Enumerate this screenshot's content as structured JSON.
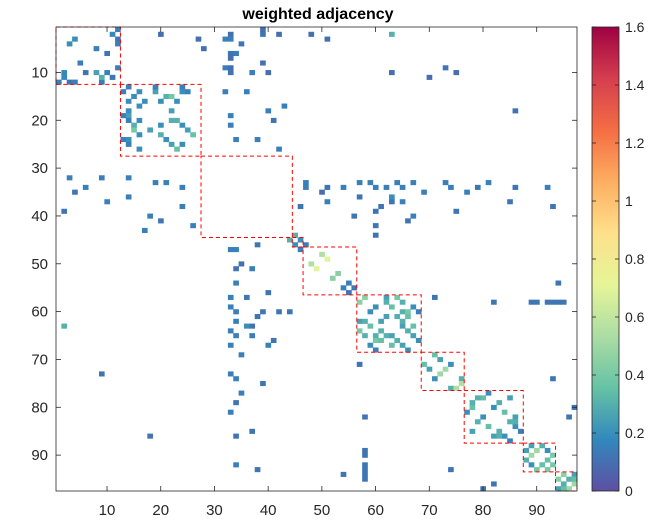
{
  "chart_data": {
    "type": "heatmap",
    "title": "weighted adjacency",
    "xlabel": "",
    "ylabel": "",
    "n": 97,
    "xlim": [
      0.5,
      97.5
    ],
    "ylim": [
      0.5,
      97.5
    ],
    "x_ticks": [
      10,
      20,
      30,
      40,
      50,
      60,
      70,
      80,
      90
    ],
    "y_ticks": [
      10,
      20,
      30,
      40,
      50,
      60,
      70,
      80,
      90
    ],
    "x_tick_labels": [
      "10",
      "20",
      "30",
      "40",
      "50",
      "60",
      "70",
      "80",
      "90"
    ],
    "y_tick_labels": [
      "10",
      "20",
      "30",
      "40",
      "50",
      "60",
      "70",
      "80",
      "90"
    ],
    "colorbar": {
      "min": 0,
      "max": 1.6,
      "ticks": [
        0,
        0.2,
        0.4,
        0.6,
        0.8,
        1,
        1.2,
        1.4,
        1.6
      ],
      "tick_labels": [
        "0",
        "0.2",
        "0.4",
        "0.6",
        "0.8",
        "1",
        "1.2",
        "1.4",
        "1.6"
      ],
      "colormap": [
        "#5e4fa2",
        "#3288bd",
        "#66c2a5",
        "#abdda4",
        "#e6f598",
        "#fee08b",
        "#fdae61",
        "#f46d43",
        "#d53e4f",
        "#9e0142"
      ]
    },
    "communities": [
      {
        "start": 1,
        "end": 12
      },
      {
        "start": 13,
        "end": 27
      },
      {
        "start": 28,
        "end": 44
      },
      {
        "start": 45,
        "end": 46
      },
      {
        "start": 47,
        "end": 56
      },
      {
        "start": 57,
        "end": 68
      },
      {
        "start": 69,
        "end": 76
      },
      {
        "start": 77,
        "end": 87
      },
      {
        "start": 88,
        "end": 93
      },
      {
        "start": 94,
        "end": 97
      }
    ],
    "community_box_color": "#ff0000",
    "cells": [
      [
        1,
        12,
        0.15
      ],
      [
        2,
        11,
        0.18
      ],
      [
        3,
        4,
        0.2
      ],
      [
        3,
        12,
        0.12
      ],
      [
        4,
        3,
        0.2
      ],
      [
        4,
        12,
        0.15
      ],
      [
        5,
        8,
        0.15
      ],
      [
        6,
        10,
        0.12
      ],
      [
        8,
        5,
        0.15
      ],
      [
        9,
        12,
        0.15
      ],
      [
        10,
        2,
        0.18
      ],
      [
        10,
        6,
        0.12
      ],
      [
        11,
        2,
        0.18
      ],
      [
        12,
        1,
        0.15
      ],
      [
        12,
        3,
        0.12
      ],
      [
        12,
        4,
        0.15
      ],
      [
        12,
        9,
        0.15
      ],
      [
        10,
        8,
        0.25
      ],
      [
        11,
        9,
        0.3
      ],
      [
        10,
        10,
        0.15
      ],
      [
        11,
        11,
        0.12
      ],
      [
        2,
        20,
        0.1
      ],
      [
        2,
        33,
        0.1
      ],
      [
        1,
        39,
        0.1
      ],
      [
        3,
        33,
        0.15
      ],
      [
        2,
        42,
        0.1
      ],
      [
        3,
        51,
        0.1
      ],
      [
        6,
        33,
        0.12
      ],
      [
        7,
        33,
        0.1
      ],
      [
        9,
        33,
        0.1
      ],
      [
        8,
        39,
        0.1
      ],
      [
        10,
        33,
        0.12
      ],
      [
        10,
        40,
        0.1
      ],
      [
        3,
        27,
        0.1
      ],
      [
        5,
        28,
        0.1
      ],
      [
        2,
        48,
        0.1
      ],
      [
        10,
        63,
        0.1
      ],
      [
        11,
        70,
        0.1
      ],
      [
        10,
        75,
        0.1
      ],
      [
        13,
        14,
        0.15
      ],
      [
        14,
        13,
        0.15
      ],
      [
        14,
        16,
        0.2
      ],
      [
        16,
        14,
        0.2
      ],
      [
        14,
        19,
        0.25
      ],
      [
        19,
        14,
        0.25
      ],
      [
        15,
        21,
        0.3
      ],
      [
        21,
        15,
        0.3
      ],
      [
        15,
        22,
        0.4
      ],
      [
        22,
        15,
        0.4
      ],
      [
        14,
        24,
        0.2
      ],
      [
        24,
        14,
        0.2
      ],
      [
        14,
        25,
        0.15
      ],
      [
        25,
        14,
        0.15
      ],
      [
        16,
        20,
        0.2
      ],
      [
        20,
        16,
        0.2
      ],
      [
        18,
        22,
        0.25
      ],
      [
        22,
        18,
        0.25
      ],
      [
        20,
        23,
        0.3
      ],
      [
        23,
        20,
        0.3
      ],
      [
        21,
        24,
        0.2
      ],
      [
        24,
        21,
        0.2
      ],
      [
        22,
        25,
        0.25
      ],
      [
        25,
        22,
        0.25
      ],
      [
        23,
        26,
        0.35
      ],
      [
        26,
        23,
        0.35
      ],
      [
        16,
        17,
        0.2
      ],
      [
        17,
        16,
        0.2
      ],
      [
        19,
        13,
        0.15
      ],
      [
        13,
        19,
        0.15
      ],
      [
        24,
        13,
        0.15
      ],
      [
        13,
        24,
        0.15
      ],
      [
        25,
        24,
        0.2
      ],
      [
        26,
        16,
        0.2
      ],
      [
        18,
        14,
        0.2
      ],
      [
        20,
        22,
        0.3
      ],
      [
        21,
        20,
        0.2
      ],
      [
        20,
        14,
        0.15
      ],
      [
        15,
        15,
        0.2
      ],
      [
        16,
        23,
        0.2
      ],
      [
        23,
        16,
        0.2
      ],
      [
        32,
        3,
        0.15
      ],
      [
        32,
        9,
        0.15
      ],
      [
        32,
        14,
        0.15
      ],
      [
        33,
        21,
        0.15
      ],
      [
        33,
        19,
        0.15
      ],
      [
        34,
        24,
        0.15
      ],
      [
        35,
        4,
        0.12
      ],
      [
        36,
        14,
        0.15
      ],
      [
        34,
        6,
        0.15
      ],
      [
        37,
        10,
        0.15
      ],
      [
        38,
        24,
        0.15
      ],
      [
        39,
        2,
        0.12
      ],
      [
        40,
        18,
        0.15
      ],
      [
        42,
        26,
        0.15
      ],
      [
        43,
        17,
        0.15
      ],
      [
        41,
        20,
        0.12
      ],
      [
        3,
        32,
        0.15
      ],
      [
        9,
        32,
        0.15
      ],
      [
        14,
        32,
        0.15
      ],
      [
        21,
        33,
        0.15
      ],
      [
        19,
        33,
        0.15
      ],
      [
        24,
        34,
        0.15
      ],
      [
        4,
        35,
        0.12
      ],
      [
        14,
        36,
        0.15
      ],
      [
        6,
        34,
        0.15
      ],
      [
        10,
        37,
        0.15
      ],
      [
        24,
        38,
        0.15
      ],
      [
        2,
        39,
        0.12
      ],
      [
        18,
        40,
        0.15
      ],
      [
        26,
        42,
        0.15
      ],
      [
        17,
        43,
        0.15
      ],
      [
        20,
        41,
        0.12
      ],
      [
        33,
        47,
        0.15
      ],
      [
        34,
        47,
        0.15
      ],
      [
        35,
        50,
        0.1
      ],
      [
        37,
        51,
        0.15
      ],
      [
        34,
        51,
        0.12
      ],
      [
        34,
        54,
        0.15
      ],
      [
        33,
        57,
        0.15
      ],
      [
        33,
        59,
        0.15
      ],
      [
        34,
        60,
        0.15
      ],
      [
        34,
        62,
        0.15
      ],
      [
        33,
        64,
        0.15
      ],
      [
        34,
        65,
        0.15
      ],
      [
        33,
        67,
        0.15
      ],
      [
        35,
        69,
        0.15
      ],
      [
        33,
        73,
        0.15
      ],
      [
        34,
        74,
        0.15
      ],
      [
        35,
        77,
        0.15
      ],
      [
        34,
        79,
        0.12
      ],
      [
        33,
        81,
        0.15
      ],
      [
        34,
        86,
        0.12
      ],
      [
        34,
        92,
        0.15
      ],
      [
        47,
        33,
        0.15
      ],
      [
        47,
        34,
        0.15
      ],
      [
        50,
        35,
        0.1
      ],
      [
        51,
        37,
        0.15
      ],
      [
        51,
        34,
        0.12
      ],
      [
        54,
        34,
        0.15
      ],
      [
        57,
        33,
        0.15
      ],
      [
        59,
        33,
        0.15
      ],
      [
        60,
        34,
        0.15
      ],
      [
        62,
        34,
        0.15
      ],
      [
        64,
        33,
        0.15
      ],
      [
        65,
        34,
        0.15
      ],
      [
        67,
        33,
        0.15
      ],
      [
        69,
        35,
        0.15
      ],
      [
        73,
        33,
        0.15
      ],
      [
        74,
        34,
        0.15
      ],
      [
        77,
        35,
        0.15
      ],
      [
        79,
        34,
        0.12
      ],
      [
        81,
        33,
        0.15
      ],
      [
        86,
        34,
        0.12
      ],
      [
        92,
        34,
        0.15
      ],
      [
        36,
        57,
        0.12
      ],
      [
        38,
        61,
        0.12
      ],
      [
        37,
        63,
        0.12
      ],
      [
        40,
        67,
        0.15
      ],
      [
        40,
        56,
        0.12
      ],
      [
        39,
        60,
        0.12
      ],
      [
        37,
        65,
        0.15
      ],
      [
        41,
        66,
        0.12
      ],
      [
        42,
        60,
        0.12
      ],
      [
        44,
        60,
        0.12
      ],
      [
        39,
        75,
        0.12
      ],
      [
        37,
        85,
        0.12
      ],
      [
        38,
        93,
        0.12
      ],
      [
        36,
        63,
        0.2
      ],
      [
        57,
        36,
        0.12
      ],
      [
        61,
        38,
        0.12
      ],
      [
        63,
        37,
        0.12
      ],
      [
        67,
        40,
        0.15
      ],
      [
        56,
        40,
        0.12
      ],
      [
        60,
        39,
        0.12
      ],
      [
        65,
        37,
        0.15
      ],
      [
        66,
        41,
        0.12
      ],
      [
        60,
        42,
        0.12
      ],
      [
        60,
        44,
        0.12
      ],
      [
        75,
        39,
        0.12
      ],
      [
        85,
        37,
        0.12
      ],
      [
        93,
        38,
        0.12
      ],
      [
        63,
        36,
        0.2
      ],
      [
        44,
        45,
        0.3
      ],
      [
        45,
        44,
        0.3
      ],
      [
        45,
        46,
        0.2
      ],
      [
        46,
        45,
        0.2
      ],
      [
        46,
        47,
        0.15
      ],
      [
        47,
        46,
        0.15
      ],
      [
        46,
        38,
        0.12
      ],
      [
        38,
        46,
        0.12
      ],
      [
        48,
        50,
        0.55
      ],
      [
        49,
        51,
        0.7
      ],
      [
        50,
        48,
        0.55
      ],
      [
        51,
        49,
        0.7
      ],
      [
        52,
        53,
        0.45
      ],
      [
        53,
        52,
        0.45
      ],
      [
        54,
        55,
        0.15
      ],
      [
        55,
        54,
        0.15
      ],
      [
        55,
        56,
        0.12
      ],
      [
        56,
        55,
        0.12
      ],
      [
        57,
        62,
        0.25
      ],
      [
        58,
        62,
        0.3
      ],
      [
        57,
        64,
        0.4
      ],
      [
        59,
        60,
        0.2
      ],
      [
        60,
        59,
        0.2
      ],
      [
        60,
        65,
        0.3
      ],
      [
        61,
        66,
        0.35
      ],
      [
        63,
        59,
        0.35
      ],
      [
        64,
        61,
        0.3
      ],
      [
        65,
        63,
        0.25
      ],
      [
        66,
        60,
        0.4
      ],
      [
        66,
        64,
        0.3
      ],
      [
        67,
        63,
        0.35
      ],
      [
        68,
        66,
        0.2
      ],
      [
        59,
        67,
        0.2
      ],
      [
        58,
        65,
        0.3
      ],
      [
        62,
        57,
        0.25
      ],
      [
        62,
        58,
        0.3
      ],
      [
        64,
        57,
        0.4
      ],
      [
        65,
        60,
        0.3
      ],
      [
        66,
        61,
        0.35
      ],
      [
        59,
        63,
        0.35
      ],
      [
        61,
        64,
        0.3
      ],
      [
        63,
        65,
        0.25
      ],
      [
        60,
        66,
        0.4
      ],
      [
        64,
        66,
        0.3
      ],
      [
        63,
        67,
        0.35
      ],
      [
        66,
        68,
        0.2
      ],
      [
        67,
        59,
        0.2
      ],
      [
        65,
        58,
        0.3
      ],
      [
        57,
        58,
        0.45
      ],
      [
        58,
        57,
        0.45
      ],
      [
        61,
        62,
        0.25
      ],
      [
        62,
        61,
        0.25
      ],
      [
        68,
        60,
        0.15
      ],
      [
        60,
        68,
        0.15
      ],
      [
        62,
        65,
        0.3
      ],
      [
        65,
        62,
        0.3
      ],
      [
        67,
        65,
        0.25
      ],
      [
        65,
        67,
        0.25
      ],
      [
        58,
        82,
        0.12
      ],
      [
        82,
        58,
        0.12
      ],
      [
        58,
        89,
        0.12
      ],
      [
        89,
        58,
        0.12
      ],
      [
        58,
        90,
        0.12
      ],
      [
        90,
        58,
        0.12
      ],
      [
        58,
        92,
        0.12
      ],
      [
        92,
        58,
        0.12
      ],
      [
        58,
        93,
        0.12
      ],
      [
        93,
        58,
        0.12
      ],
      [
        58,
        94,
        0.12
      ],
      [
        94,
        58,
        0.12
      ],
      [
        58,
        95,
        0.12
      ],
      [
        95,
        58,
        0.12
      ],
      [
        69,
        71,
        0.35
      ],
      [
        71,
        69,
        0.35
      ],
      [
        70,
        72,
        0.25
      ],
      [
        72,
        70,
        0.25
      ],
      [
        72,
        73,
        0.5
      ],
      [
        73,
        72,
        0.5
      ],
      [
        74,
        76,
        0.3
      ],
      [
        76,
        74,
        0.3
      ],
      [
        75,
        76,
        0.55
      ],
      [
        76,
        75,
        0.55
      ],
      [
        71,
        74,
        0.2
      ],
      [
        74,
        71,
        0.2
      ],
      [
        77,
        81,
        0.2
      ],
      [
        81,
        77,
        0.2
      ],
      [
        78,
        80,
        0.35
      ],
      [
        80,
        78,
        0.35
      ],
      [
        78,
        85,
        0.25
      ],
      [
        85,
        78,
        0.25
      ],
      [
        79,
        83,
        0.3
      ],
      [
        83,
        79,
        0.3
      ],
      [
        80,
        82,
        0.2
      ],
      [
        82,
        80,
        0.2
      ],
      [
        81,
        84,
        0.35
      ],
      [
        84,
        81,
        0.35
      ],
      [
        82,
        86,
        0.25
      ],
      [
        86,
        82,
        0.25
      ],
      [
        83,
        85,
        0.3
      ],
      [
        85,
        83,
        0.3
      ],
      [
        84,
        86,
        0.2
      ],
      [
        86,
        84,
        0.2
      ],
      [
        85,
        87,
        0.15
      ],
      [
        87,
        85,
        0.15
      ],
      [
        78,
        79,
        0.3
      ],
      [
        79,
        78,
        0.3
      ],
      [
        83,
        86,
        0.3
      ],
      [
        86,
        83,
        0.3
      ],
      [
        88,
        91,
        0.3
      ],
      [
        91,
        88,
        0.3
      ],
      [
        89,
        90,
        0.5
      ],
      [
        90,
        89,
        0.5
      ],
      [
        89,
        92,
        0.2
      ],
      [
        92,
        89,
        0.2
      ],
      [
        90,
        93,
        0.4
      ],
      [
        93,
        90,
        0.4
      ],
      [
        91,
        92,
        0.35
      ],
      [
        92,
        91,
        0.35
      ],
      [
        88,
        89,
        0.25
      ],
      [
        89,
        88,
        0.25
      ],
      [
        92,
        93,
        0.4
      ],
      [
        93,
        92,
        0.4
      ],
      [
        94,
        95,
        0.45
      ],
      [
        95,
        94,
        0.45
      ],
      [
        95,
        96,
        0.3
      ],
      [
        96,
        95,
        0.3
      ],
      [
        96,
        97,
        0.5
      ],
      [
        97,
        96,
        0.5
      ],
      [
        94,
        97,
        0.25
      ],
      [
        97,
        94,
        0.25
      ],
      [
        95,
        97,
        0.35
      ],
      [
        97,
        95,
        0.35
      ],
      [
        63,
        2,
        0.3
      ],
      [
        2,
        63,
        0.3
      ],
      [
        73,
        9,
        0.12
      ],
      [
        9,
        73,
        0.12
      ],
      [
        86,
        18,
        0.12
      ],
      [
        18,
        86,
        0.12
      ],
      [
        82,
        96,
        0.12
      ],
      [
        96,
        82,
        0.12
      ],
      [
        80,
        97,
        0.12
      ],
      [
        97,
        80,
        0.12
      ],
      [
        93,
        74,
        0.12
      ],
      [
        74,
        93,
        0.12
      ],
      [
        94,
        54,
        0.12
      ],
      [
        54,
        94,
        0.12
      ],
      [
        71,
        57,
        0.12
      ],
      [
        57,
        71,
        0.12
      ]
    ]
  }
}
